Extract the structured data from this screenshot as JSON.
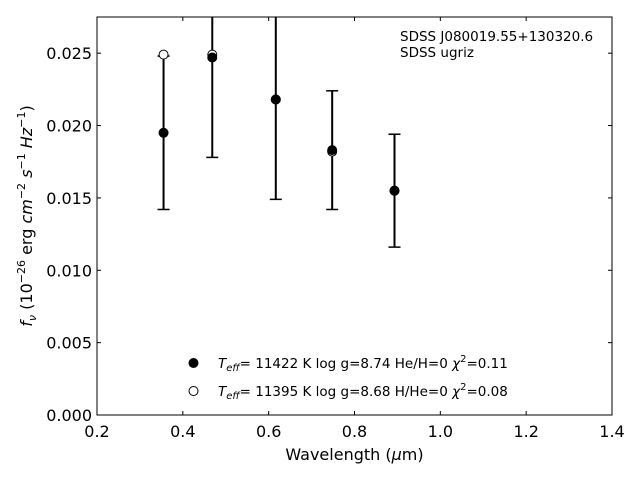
{
  "chart_data": {
    "type": "scatter",
    "title": "",
    "xlabel": "Wavelength (μm)",
    "xlabel_parts": {
      "main": "Wavelength (",
      "mu": "μ",
      "unit": "m)"
    },
    "ylabel": "f_ν (10^-26 erg cm^-2 s^-1 Hz^-1)",
    "xlim": [
      0.2,
      1.4
    ],
    "ylim": [
      0.0,
      0.0275
    ],
    "xticks": [
      0.2,
      0.4,
      0.6,
      0.8,
      1.0,
      1.2,
      1.4
    ],
    "xtick_labels": [
      "0.2",
      "0.4",
      "0.6",
      "0.8",
      "1.0",
      "1.2",
      "1.4"
    ],
    "yticks": [
      0.0,
      0.005,
      0.01,
      0.015,
      0.02,
      0.025
    ],
    "ytick_labels": [
      "0.000",
      "0.005",
      "0.010",
      "0.015",
      "0.020",
      "0.025"
    ],
    "grid": false,
    "legend_position": "bottom-center",
    "annotation": [
      "SDSS J080019.55+130320.6",
      "SDSS ugriz"
    ],
    "observed": {
      "x": [
        0.3551,
        0.4686,
        0.6166,
        0.748,
        0.8932
      ],
      "y": [
        0.0195,
        0.0247,
        0.0218,
        0.0183,
        0.0155
      ],
      "err": [
        0.0053,
        0.0069,
        0.0069,
        0.0041,
        0.0039
      ]
    },
    "series": [
      {
        "marker": "filled-circle",
        "x": [
          0.3551,
          0.4686,
          0.6166,
          0.748,
          0.8932
        ],
        "y": [
          0.0195,
          0.0247,
          0.0218,
          0.0183,
          0.0155
        ],
        "legend": {
          "teff": "11422",
          "logg": "8.74",
          "comp": "He/H=0",
          "chi2": "0.11"
        }
      },
      {
        "marker": "open-circle",
        "x": [
          0.3551,
          0.4686,
          0.6166,
          0.748,
          0.8932
        ],
        "y": [
          0.0249,
          0.0249,
          0.0218,
          0.0182,
          0.0155
        ],
        "legend": {
          "teff": "11395",
          "logg": "8.68",
          "comp": "H/He=0",
          "chi2": "0.08"
        }
      }
    ]
  }
}
